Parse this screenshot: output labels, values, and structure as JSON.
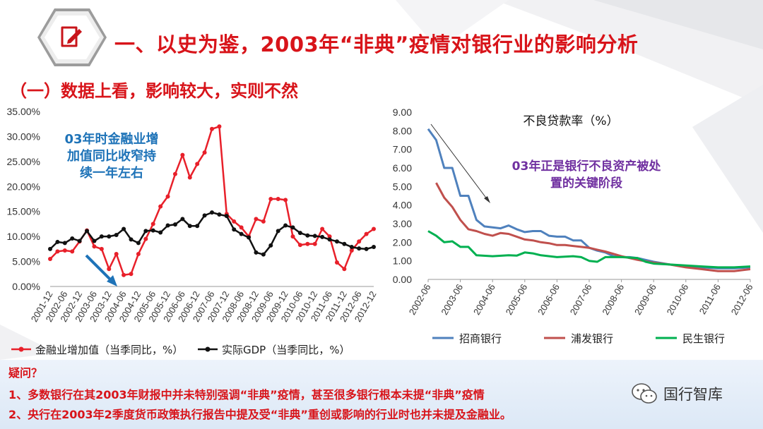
{
  "slide": {
    "title": "一、以史为鉴，2003年“非典”疫情对银行业的影响分析",
    "subtitle": "（一）数据上看，影响较大，实则不然",
    "footer": {
      "heading": "疑问？",
      "lines": [
        "1、多数银行在其2003年财报中并未特别强调“非典”疫情，甚至很多银行根本未提“非典”疫情",
        "2、央行在2003年2季度货币政策执行报告中提及受“非典”重创或影响的行业时也并未提及金融业。"
      ]
    },
    "watermark": "国行智库",
    "icons": {
      "title_icon": "edit-note-icon",
      "watermark_icon": "wechat-icon"
    },
    "colors": {
      "accent": "#d8141a",
      "annotation_left": "#1e73b8",
      "annotation_right": "#7030a0"
    }
  },
  "chart_data": [
    {
      "type": "line",
      "title": "",
      "xlabel": "",
      "ylabel": "",
      "ylim": [
        0,
        35
      ],
      "y_ticks": [
        "0.00%",
        "5.00%",
        "10.00%",
        "15.00%",
        "20.00%",
        "25.00%",
        "30.00%",
        "35.00%"
      ],
      "categories": [
        "2001-12",
        "2002-03",
        "2002-06",
        "2002-09",
        "2002-12",
        "2003-03",
        "2003-06",
        "2003-09",
        "2003-12",
        "2004-03",
        "2004-06",
        "2004-09",
        "2004-12",
        "2005-03",
        "2005-06",
        "2005-09",
        "2005-12",
        "2006-03",
        "2006-06",
        "2006-09",
        "2006-12",
        "2007-03",
        "2007-06",
        "2007-09",
        "2007-12",
        "2008-03",
        "2008-06",
        "2008-09",
        "2008-12",
        "2009-03",
        "2009-06",
        "2009-09",
        "2009-12",
        "2010-03",
        "2010-06",
        "2010-09",
        "2010-12",
        "2011-03",
        "2011-06",
        "2011-09",
        "2011-12",
        "2012-03",
        "2012-06",
        "2012-09",
        "2012-12"
      ],
      "x_tick_labels": [
        "2001-12",
        "2002-06",
        "2002-12",
        "2003-06",
        "2003-12",
        "2004-06",
        "2004-12",
        "2005-06",
        "2005-12",
        "2006-06",
        "2006-12",
        "2007-06",
        "2007-12",
        "2008-06",
        "2008-12",
        "2009-06",
        "2009-12",
        "2010-06",
        "2010-12",
        "2011-06",
        "2011-12",
        "2012-06",
        "2012-12"
      ],
      "series": [
        {
          "name": "金融业增加值（当季同比，%）",
          "color": "#e8202a",
          "values": [
            5.5,
            7,
            7.2,
            7,
            9,
            11.2,
            8,
            7.5,
            3.5,
            6.5,
            2.3,
            2.5,
            6.5,
            9.5,
            12.5,
            16,
            18,
            22.5,
            26.3,
            21.8,
            24.5,
            26.8,
            31.5,
            32,
            14.5,
            13,
            11.8,
            10,
            13.5,
            13,
            17.5,
            17.5,
            17.3,
            10,
            8.3,
            8.5,
            8.5,
            11.5,
            10,
            4.8,
            3.5,
            7.2,
            9,
            10.5,
            11.5
          ]
        },
        {
          "name": "实际GDP（当季同比，%）",
          "color": "#111111",
          "values": [
            7.5,
            8.9,
            8.7,
            9.6,
            9.1,
            11.1,
            9.1,
            10.0,
            10.0,
            10.3,
            11.5,
            9.4,
            8.7,
            11.1,
            11.2,
            10.8,
            12.2,
            12.4,
            13.5,
            12.1,
            12.1,
            14.2,
            14.8,
            14.4,
            14.1,
            11.4,
            10.5,
            9.8,
            6.8,
            6.4,
            8.2,
            11.1,
            12.2,
            11.8,
            10.7,
            10.2,
            10.1,
            9.9,
            9.4,
            9.0,
            8.5,
            7.9,
            7.6,
            7.5,
            7.9
          ]
        }
      ],
      "legend_position": "bottom",
      "annotation": "03年时金融业增\n加值同比收窄持\n续一年左右"
    },
    {
      "type": "line",
      "title": "不良贷款率（%）",
      "xlabel": "",
      "ylabel": "",
      "ylim": [
        0,
        9
      ],
      "y_ticks": [
        "0.00",
        "1.00",
        "2.00",
        "3.00",
        "4.00",
        "5.00",
        "6.00",
        "7.00",
        "8.00",
        "9.00"
      ],
      "x_tick_labels": [
        "2002-06",
        "2003-06",
        "2004-06",
        "2005-06",
        "2006-06",
        "2007-06",
        "2008-06",
        "2009-06",
        "2010-06",
        "2011-06",
        "2012-06"
      ],
      "series": [
        {
          "name": "招商银行",
          "color": "#4f81bd",
          "points": [
            [
              2002.5,
              8.1
            ],
            [
              2002.75,
              7.5
            ],
            [
              2003.0,
              6.0
            ],
            [
              2003.25,
              6.0
            ],
            [
              2003.5,
              4.5
            ],
            [
              2003.75,
              4.5
            ],
            [
              2004.0,
              3.2
            ],
            [
              2004.25,
              2.85
            ],
            [
              2004.5,
              2.8
            ],
            [
              2004.75,
              2.75
            ],
            [
              2005.0,
              2.9
            ],
            [
              2005.25,
              2.7
            ],
            [
              2005.5,
              2.55
            ],
            [
              2005.75,
              2.6
            ],
            [
              2006.0,
              2.6
            ],
            [
              2006.25,
              2.35
            ],
            [
              2006.5,
              2.3
            ],
            [
              2006.75,
              2.3
            ],
            [
              2007.0,
              2.1
            ],
            [
              2007.25,
              2.1
            ],
            [
              2007.5,
              1.7
            ],
            [
              2007.75,
              1.55
            ],
            [
              2008.0,
              1.45
            ],
            [
              2008.25,
              1.25
            ],
            [
              2008.5,
              1.2
            ],
            [
              2008.75,
              1.2
            ],
            [
              2009.0,
              1.15
            ],
            [
              2009.5,
              0.95
            ],
            [
              2010.0,
              0.8
            ],
            [
              2010.5,
              0.7
            ],
            [
              2011.0,
              0.65
            ],
            [
              2011.5,
              0.6
            ],
            [
              2012.0,
              0.6
            ],
            [
              2012.5,
              0.65
            ]
          ]
        },
        {
          "name": "浦发银行",
          "color": "#c0504d",
          "points": [
            [
              2002.75,
              5.2
            ],
            [
              2003.0,
              4.4
            ],
            [
              2003.25,
              3.9
            ],
            [
              2003.5,
              3.2
            ],
            [
              2003.75,
              2.7
            ],
            [
              2004.0,
              2.6
            ],
            [
              2004.25,
              2.45
            ],
            [
              2004.5,
              2.35
            ],
            [
              2004.75,
              2.5
            ],
            [
              2005.0,
              2.45
            ],
            [
              2005.25,
              2.3
            ],
            [
              2005.5,
              2.15
            ],
            [
              2005.75,
              2.1
            ],
            [
              2006.0,
              2.0
            ],
            [
              2006.25,
              1.95
            ],
            [
              2006.5,
              1.85
            ],
            [
              2006.75,
              1.85
            ],
            [
              2007.0,
              1.8
            ],
            [
              2007.25,
              1.75
            ],
            [
              2007.5,
              1.7
            ],
            [
              2007.75,
              1.6
            ],
            [
              2008.0,
              1.5
            ],
            [
              2008.5,
              1.25
            ],
            [
              2009.0,
              1.05
            ],
            [
              2009.5,
              0.9
            ],
            [
              2010.0,
              0.8
            ],
            [
              2010.5,
              0.65
            ],
            [
              2011.0,
              0.55
            ],
            [
              2011.5,
              0.45
            ],
            [
              2012.0,
              0.45
            ],
            [
              2012.5,
              0.55
            ]
          ]
        },
        {
          "name": "民生银行",
          "color": "#00b050",
          "points": [
            [
              2002.5,
              2.6
            ],
            [
              2002.75,
              2.35
            ],
            [
              2003.0,
              2.0
            ],
            [
              2003.25,
              2.05
            ],
            [
              2003.5,
              1.75
            ],
            [
              2003.75,
              1.75
            ],
            [
              2004.0,
              1.3
            ],
            [
              2004.5,
              1.25
            ],
            [
              2005.0,
              1.3
            ],
            [
              2005.25,
              1.28
            ],
            [
              2005.5,
              1.45
            ],
            [
              2005.75,
              1.4
            ],
            [
              2006.0,
              1.3
            ],
            [
              2006.5,
              1.2
            ],
            [
              2007.0,
              1.25
            ],
            [
              2007.25,
              1.2
            ],
            [
              2007.5,
              1.0
            ],
            [
              2007.75,
              0.95
            ],
            [
              2008.0,
              1.2
            ],
            [
              2008.5,
              1.2
            ],
            [
              2009.0,
              1.15
            ],
            [
              2009.25,
              0.95
            ],
            [
              2009.5,
              0.85
            ],
            [
              2010.0,
              0.8
            ],
            [
              2010.5,
              0.75
            ],
            [
              2011.0,
              0.7
            ],
            [
              2011.5,
              0.65
            ],
            [
              2012.0,
              0.65
            ],
            [
              2012.5,
              0.7
            ]
          ]
        }
      ],
      "legend_position": "bottom",
      "annotation": "03年正是银行不良资产被处\n置的关键阶段"
    }
  ]
}
